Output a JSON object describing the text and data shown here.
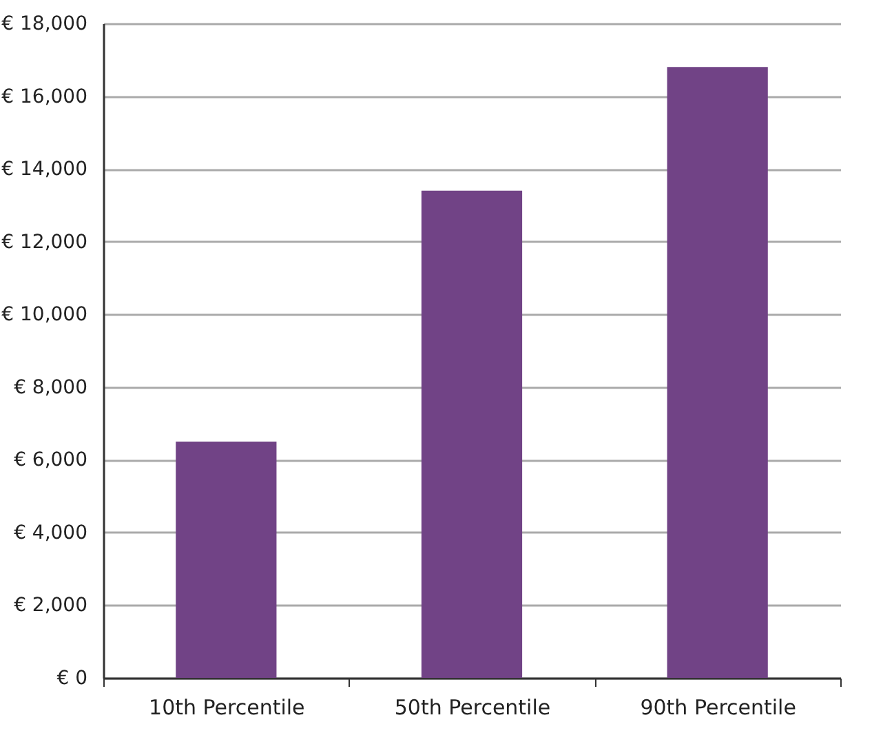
{
  "chart_data": {
    "type": "bar",
    "categories": [
      "10th Percentile",
      "50th Percentile",
      "90th Percentile"
    ],
    "values": [
      6500,
      13400,
      16800
    ],
    "color": "#714386",
    "ylim": [
      0,
      18000
    ],
    "yticks": [
      {
        "value": 0,
        "label": "€ 0"
      },
      {
        "value": 2000,
        "label": "€ 2,000"
      },
      {
        "value": 4000,
        "label": "€ 4,000"
      },
      {
        "value": 6000,
        "label": "€ 6,000"
      },
      {
        "value": 8000,
        "label": "€ 8,000"
      },
      {
        "value": 10000,
        "label": "€ 10,000"
      },
      {
        "value": 12000,
        "label": "€ 12,000"
      },
      {
        "value": 14000,
        "label": "€ 14,000"
      },
      {
        "value": 16000,
        "label": "€ 16,000"
      },
      {
        "value": 18000,
        "label": "€ 18,000"
      }
    ],
    "grid": "y"
  }
}
